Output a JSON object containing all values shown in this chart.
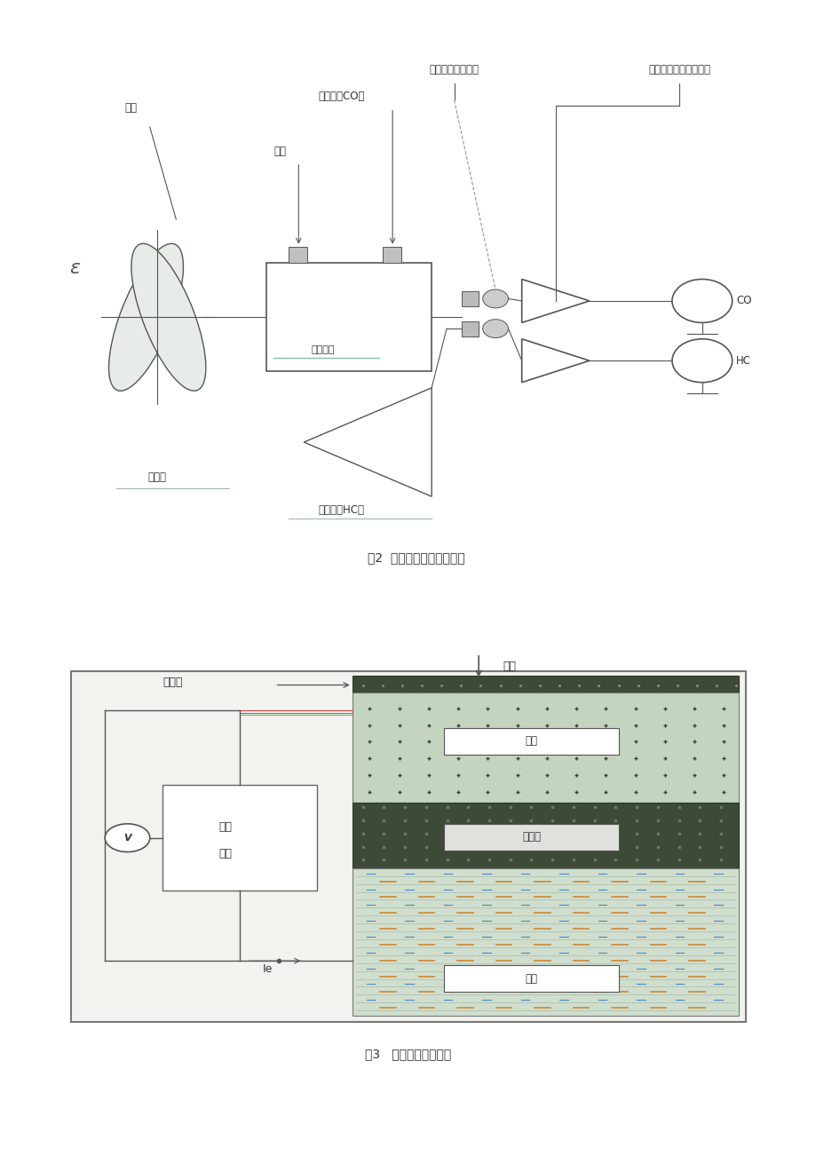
{
  "page_bg": "#ffffff",
  "fig_bg": "#ffffff",
  "caption1": "图2  气体分析光学系统构造",
  "caption2": "图3   氧传感器构造简图",
  "diagram1": {
    "labels": {
      "guangyuan": "光源",
      "yangqi": "样气",
      "lvguangpian_co": "滤光片（CO）",
      "banjdtihwjc": "半导体红外检测器",
      "fangdaqijxhcl": "放大器及信号处理模块",
      "yangpinqishi": "样品气室",
      "lvguangpian_hc": "滤光片（HC）",
      "qieguangpian": "切光片",
      "co_label": "CO",
      "hc_label": "HC"
    }
  },
  "diagram2": {
    "labels": {
      "kongqi": "空气",
      "shentoumuo": "渗透膜",
      "fuzai": "负载",
      "diankang": "电阻",
      "ie": "Ie",
      "yangji": "阳极",
      "dianjielye": "电解液",
      "yinji": "阴极"
    }
  },
  "lc": "#555555",
  "tc": "#333333",
  "dark_strip": "#3d4a38",
  "upper_dot_bg": "#c5d4be",
  "lower_stripe_bg": "#d0dece"
}
